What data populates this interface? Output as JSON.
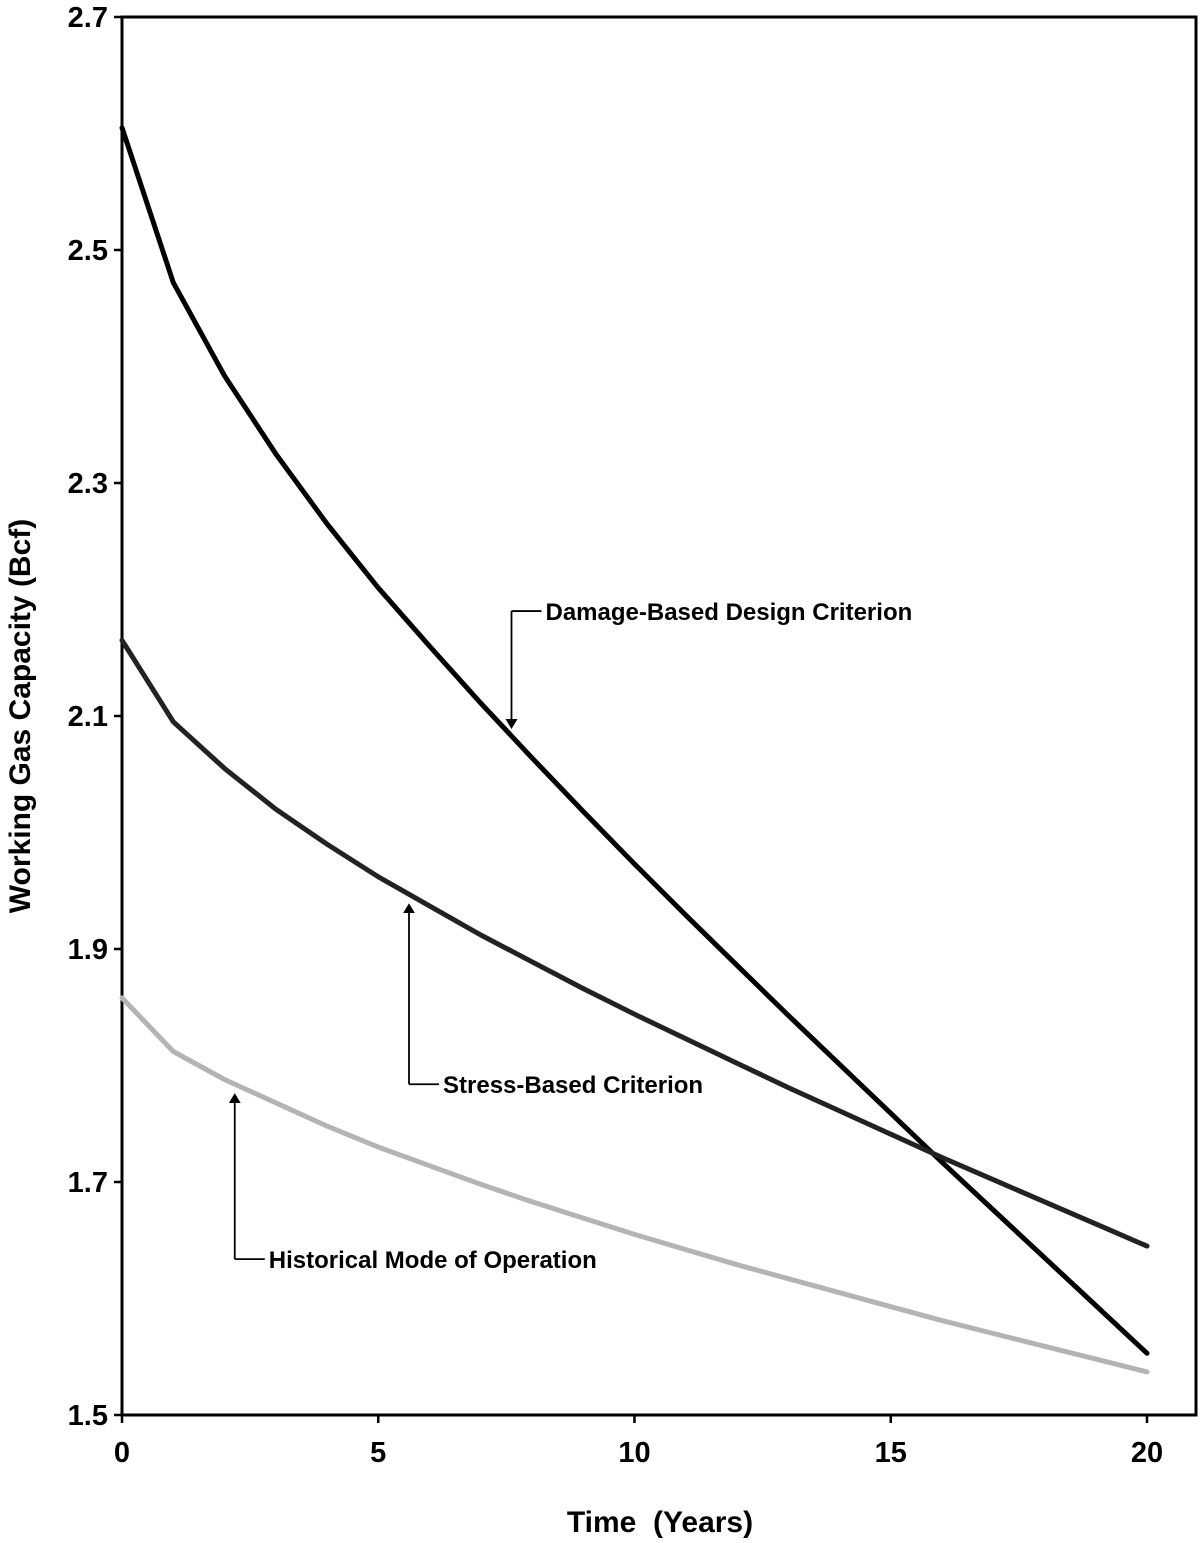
{
  "chart_data": {
    "type": "line",
    "title": "",
    "xlabel": "Time  (Years)",
    "ylabel": "Working Gas Capacity (Bcf)",
    "xlim": [
      0,
      20
    ],
    "ylim": [
      1.5,
      2.7
    ],
    "xticks": [
      0,
      5,
      10,
      15,
      20
    ],
    "xtick_labels": [
      "0",
      "5",
      "10",
      "15",
      "20"
    ],
    "yticks": [
      1.5,
      1.7,
      1.9,
      2.1,
      2.3,
      2.5,
      2.7
    ],
    "ytick_labels": [
      "1.5",
      "1.7",
      "1.9",
      "2.1",
      "2.3",
      "2.5",
      "2.7"
    ],
    "grid": false,
    "x": [
      0,
      1,
      2,
      3,
      4,
      5,
      6,
      7,
      8,
      9,
      10,
      11,
      12,
      13,
      14,
      15,
      16,
      17,
      18,
      19,
      20
    ],
    "series": [
      {
        "name": "Damage-Based Design Criterion",
        "color": "#000000",
        "values": [
          2.605,
          2.472,
          2.392,
          2.325,
          2.265,
          2.21,
          2.16,
          2.111,
          2.064,
          2.018,
          1.973,
          1.929,
          1.886,
          1.843,
          1.801,
          1.759,
          1.717,
          1.676,
          1.635,
          1.594,
          1.553
        ]
      },
      {
        "name": "Stress-Based Criterion",
        "color": "#222222",
        "values": [
          2.165,
          2.095,
          2.055,
          2.02,
          1.99,
          1.962,
          1.937,
          1.912,
          1.889,
          1.866,
          1.844,
          1.823,
          1.802,
          1.781,
          1.761,
          1.741,
          1.721,
          1.702,
          1.683,
          1.664,
          1.645
        ]
      },
      {
        "name": "Historical Mode of Operation",
        "color": "#b4b4b4",
        "values": [
          1.858,
          1.812,
          1.788,
          1.768,
          1.748,
          1.73,
          1.714,
          1.698,
          1.683,
          1.669,
          1.655,
          1.642,
          1.629,
          1.617,
          1.605,
          1.593,
          1.581,
          1.57,
          1.559,
          1.548,
          1.537
        ]
      }
    ],
    "annotations": [
      {
        "text": "Damage-Based Design Criterion",
        "series": 0,
        "points_to_x": 7.6
      },
      {
        "text": "Stress-Based Criterion",
        "series": 1,
        "points_to_x": 5.6
      },
      {
        "text": "Historical Mode of Operation",
        "series": 2,
        "points_to_x": 2.2
      }
    ]
  }
}
